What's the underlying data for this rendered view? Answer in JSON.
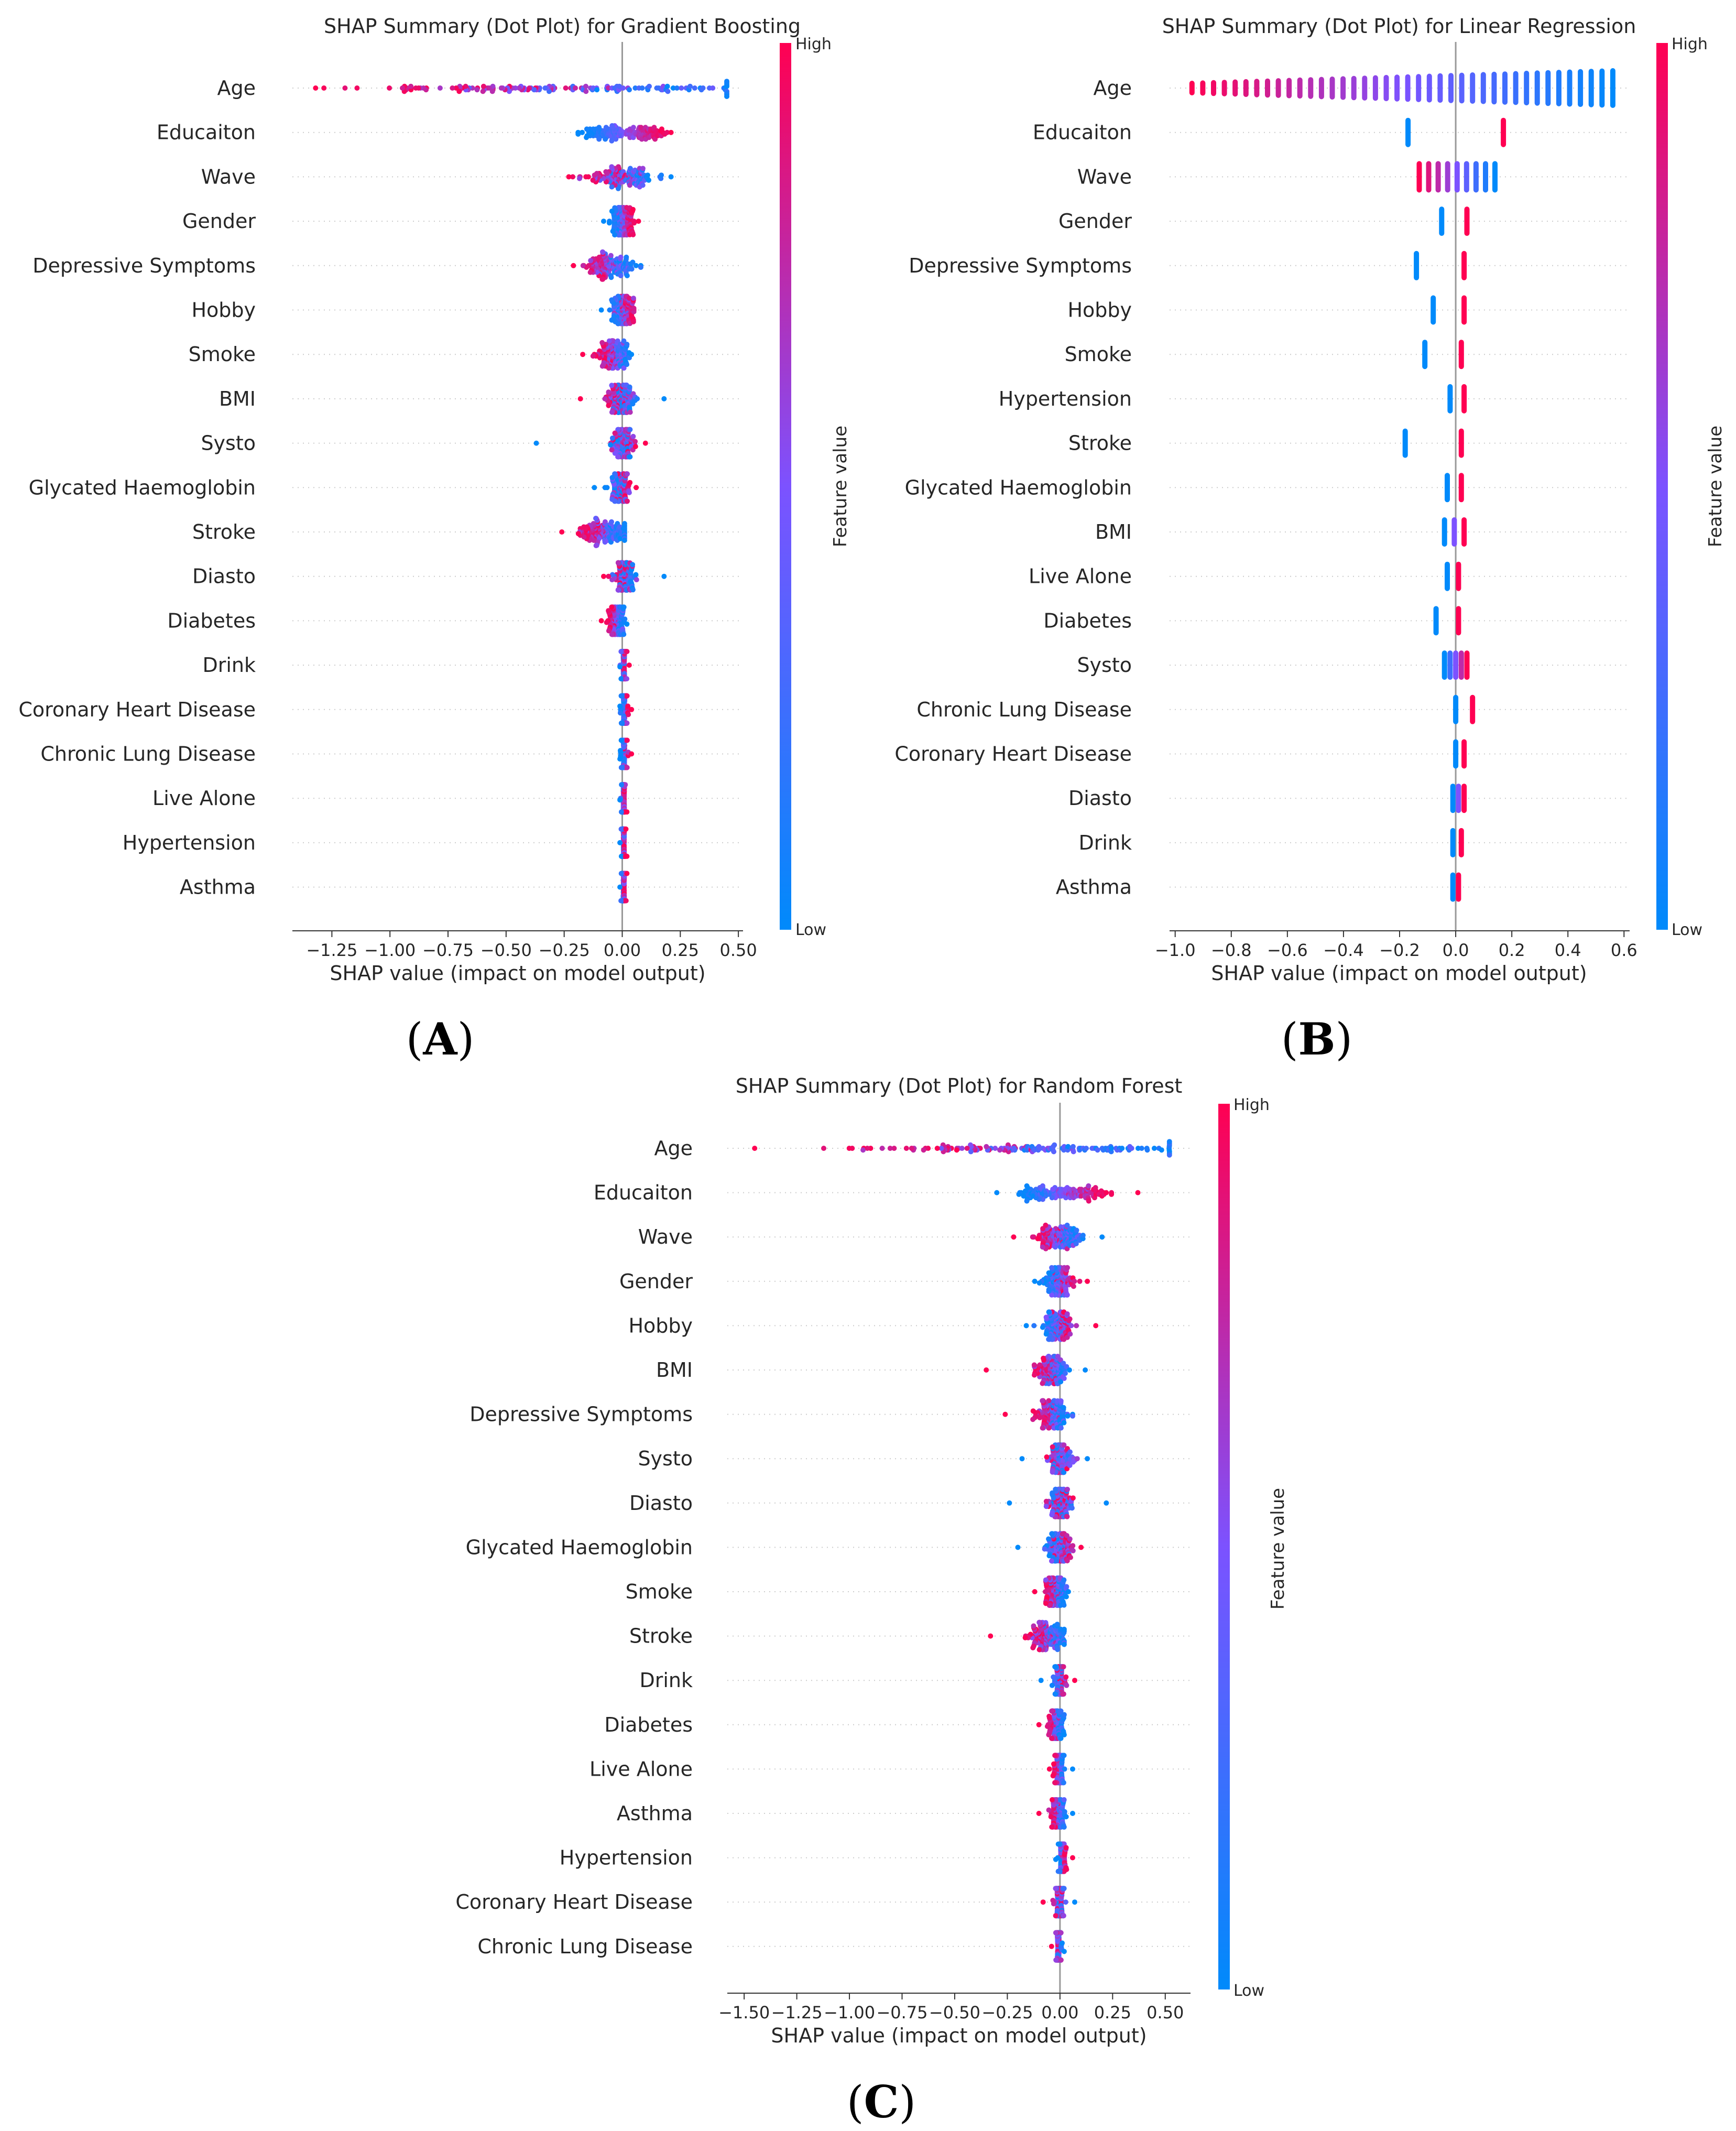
{
  "colors": {
    "low": "#008afb",
    "mid": "#7c52ff",
    "high": "#ff0052",
    "axis": "#333333",
    "zero": "#999999",
    "grid": "#cccccc"
  },
  "feature_value_label": "Feature value",
  "colorbar_high": "High",
  "colorbar_low": "Low",
  "chart_data": [
    {
      "type": "scatter",
      "panel_label": "A",
      "title": "SHAP Summary (Dot Plot) for Gradient Boosting",
      "xlabel": "SHAP value (impact on model output)",
      "xlim": [
        -1.42,
        0.52
      ],
      "xticks": [
        -1.25,
        -1.0,
        -0.75,
        -0.5,
        -0.25,
        0.0,
        0.25,
        0.5
      ],
      "xtick_labels": [
        "−1.25",
        "−1.00",
        "−0.75",
        "−0.50",
        "−0.25",
        "0.00",
        "0.25",
        "0.50"
      ],
      "features": [
        "Age",
        "Educaiton",
        "Wave",
        "Gender",
        "Depressive Symptoms",
        "Hobby",
        "Smoke",
        "BMI",
        "Systo",
        "Glycated Haemoglobin",
        "Stroke",
        "Diasto",
        "Diabetes",
        "Drink",
        "Coronary Heart Disease",
        "Chronic Lung Disease",
        "Live Alone",
        "Hypertension",
        "Asthma"
      ],
      "distributions": [
        {
          "min": -1.32,
          "max": 0.45,
          "low_center": 0.3,
          "high_center": -0.75,
          "spread": 0.45
        },
        {
          "min": -0.19,
          "max": 0.21,
          "low_center": -0.15,
          "high_center": 0.17,
          "spread": 0.03
        },
        {
          "min": -0.23,
          "max": 0.21,
          "low_center": 0.06,
          "high_center": -0.08,
          "spread": 0.1
        },
        {
          "min": -0.08,
          "max": 0.07,
          "low_center": -0.04,
          "high_center": 0.04,
          "spread": 0.02
        },
        {
          "min": -0.21,
          "max": 0.08,
          "low_center": 0.01,
          "high_center": -0.12,
          "spread": 0.06
        },
        {
          "min": -0.09,
          "max": 0.05,
          "low_center": -0.03,
          "high_center": 0.03,
          "spread": 0.03
        },
        {
          "min": -0.17,
          "max": 0.04,
          "low_center": 0.01,
          "high_center": -0.08,
          "spread": 0.04
        },
        {
          "min": -0.18,
          "max": 0.18,
          "low_center": 0.01,
          "high_center": -0.03,
          "spread": 0.05
        },
        {
          "min": -0.37,
          "max": 0.1,
          "low_center": 0.0,
          "high_center": 0.01,
          "spread": 0.04
        },
        {
          "min": -0.12,
          "max": 0.06,
          "low_center": -0.02,
          "high_center": 0.01,
          "spread": 0.03
        },
        {
          "min": -0.26,
          "max": 0.01,
          "low_center": 0.0,
          "high_center": -0.16,
          "spread": 0.05
        },
        {
          "min": -0.08,
          "max": 0.18,
          "low_center": 0.02,
          "high_center": -0.01,
          "spread": 0.04
        },
        {
          "min": -0.09,
          "max": 0.02,
          "low_center": 0.0,
          "high_center": -0.05,
          "spread": 0.02
        },
        {
          "min": -0.01,
          "max": 0.03,
          "low_center": 0.0,
          "high_center": 0.01,
          "spread": 0.008
        },
        {
          "min": -0.01,
          "max": 0.04,
          "low_center": 0.0,
          "high_center": 0.02,
          "spread": 0.008
        },
        {
          "min": -0.01,
          "max": 0.04,
          "low_center": 0.0,
          "high_center": 0.02,
          "spread": 0.008
        },
        {
          "min": -0.01,
          "max": 0.02,
          "low_center": 0.0,
          "high_center": 0.01,
          "spread": 0.005
        },
        {
          "min": -0.01,
          "max": 0.02,
          "low_center": 0.0,
          "high_center": 0.01,
          "spread": 0.005
        },
        {
          "min": -0.01,
          "max": 0.02,
          "low_center": 0.0,
          "high_center": 0.01,
          "spread": 0.005
        }
      ]
    },
    {
      "type": "scatter",
      "panel_label": "B",
      "title": "SHAP Summary (Dot Plot) for Linear Regression",
      "xlabel": "SHAP value (impact on model output)",
      "xlim": [
        -1.02,
        0.62
      ],
      "xticks": [
        -1.0,
        -0.8,
        -0.6,
        -0.4,
        -0.2,
        0.0,
        0.2,
        0.4,
        0.6
      ],
      "xtick_labels": [
        "−1.0",
        "−0.8",
        "−0.6",
        "−0.4",
        "−0.2",
        "0.0",
        "0.2",
        "0.4",
        "0.6"
      ],
      "features": [
        "Age",
        "Educaiton",
        "Wave",
        "Gender",
        "Depressive Symptoms",
        "Hobby",
        "Smoke",
        "Hypertension",
        "Stroke",
        "Glycated Haemoglobin",
        "BMI",
        "Live Alone",
        "Diabetes",
        "Systo",
        "Chronic Lung Disease",
        "Coronary Heart Disease",
        "Diasto",
        "Drink",
        "Asthma"
      ],
      "discrete": [
        {
          "min": -0.94,
          "max": 0.56,
          "columns": 40
        },
        {
          "min": -0.17,
          "max": 0.17,
          "columns": 2
        },
        {
          "min": -0.13,
          "max": 0.14,
          "columns": 9
        },
        {
          "min": -0.05,
          "max": 0.04,
          "columns": 2
        },
        {
          "min": -0.14,
          "max": 0.03,
          "columns": 2
        },
        {
          "min": -0.08,
          "max": 0.03,
          "columns": 2
        },
        {
          "min": -0.11,
          "max": 0.02,
          "columns": 2
        },
        {
          "min": -0.02,
          "max": 0.03,
          "columns": 2
        },
        {
          "min": -0.18,
          "max": 0.02,
          "columns": 2
        },
        {
          "min": -0.03,
          "max": 0.02,
          "columns": 2
        },
        {
          "min": -0.04,
          "max": 0.03,
          "columns": 3
        },
        {
          "min": -0.03,
          "max": 0.01,
          "columns": 2
        },
        {
          "min": -0.07,
          "max": 0.01,
          "columns": 2
        },
        {
          "min": -0.04,
          "max": 0.04,
          "columns": 5
        },
        {
          "min": 0.0,
          "max": 0.06,
          "columns": 2
        },
        {
          "min": 0.0,
          "max": 0.03,
          "columns": 2
        },
        {
          "min": -0.01,
          "max": 0.03,
          "columns": 3
        },
        {
          "min": -0.01,
          "max": 0.02,
          "columns": 2
        },
        {
          "min": -0.01,
          "max": 0.01,
          "columns": 2
        }
      ]
    },
    {
      "type": "scatter",
      "panel_label": "C",
      "title": "SHAP Summary (Dot Plot) for Random Forest",
      "xlabel": "SHAP value (impact on model output)",
      "xlim": [
        -1.58,
        0.62
      ],
      "xticks": [
        -1.5,
        -1.25,
        -1.0,
        -0.75,
        -0.5,
        -0.25,
        0.0,
        0.25,
        0.5
      ],
      "xtick_labels": [
        "−1.50",
        "−1.25",
        "−1.00",
        "−0.75",
        "−0.50",
        "−0.25",
        "0.00",
        "0.25",
        "0.50"
      ],
      "features": [
        "Age",
        "Educaiton",
        "Wave",
        "Gender",
        "Hobby",
        "BMI",
        "Depressive Symptoms",
        "Systo",
        "Diasto",
        "Glycated Haemoglobin",
        "Smoke",
        "Stroke",
        "Drink",
        "Diabetes",
        "Live Alone",
        "Asthma",
        "Hypertension",
        "Coronary Heart Disease",
        "Chronic Lung Disease"
      ],
      "distributions": [
        {
          "min": -1.45,
          "max": 0.52,
          "low_center": 0.32,
          "high_center": -0.7,
          "spread": 0.45
        },
        {
          "min": -0.3,
          "max": 0.37,
          "low_center": -0.17,
          "high_center": 0.2,
          "spread": 0.06
        },
        {
          "min": -0.22,
          "max": 0.2,
          "low_center": 0.06,
          "high_center": -0.08,
          "spread": 0.07
        },
        {
          "min": -0.12,
          "max": 0.13,
          "low_center": -0.05,
          "high_center": 0.05,
          "spread": 0.04
        },
        {
          "min": -0.16,
          "max": 0.17,
          "low_center": -0.05,
          "high_center": 0.03,
          "spread": 0.05
        },
        {
          "min": -0.35,
          "max": 0.12,
          "low_center": 0.0,
          "high_center": -0.08,
          "spread": 0.05
        },
        {
          "min": -0.26,
          "max": 0.06,
          "low_center": 0.01,
          "high_center": -0.09,
          "spread": 0.05
        },
        {
          "min": -0.18,
          "max": 0.13,
          "low_center": 0.0,
          "high_center": 0.0,
          "spread": 0.05
        },
        {
          "min": -0.24,
          "max": 0.22,
          "low_center": 0.0,
          "high_center": 0.0,
          "spread": 0.05
        },
        {
          "min": -0.2,
          "max": 0.1,
          "low_center": -0.03,
          "high_center": 0.02,
          "spread": 0.04
        },
        {
          "min": -0.12,
          "max": 0.04,
          "low_center": 0.01,
          "high_center": -0.05,
          "spread": 0.03
        },
        {
          "min": -0.33,
          "max": 0.02,
          "low_center": 0.0,
          "high_center": -0.12,
          "spread": 0.05
        },
        {
          "min": -0.09,
          "max": 0.07,
          "low_center": -0.01,
          "high_center": 0.01,
          "spread": 0.02
        },
        {
          "min": -0.1,
          "max": 0.02,
          "low_center": 0.0,
          "high_center": -0.04,
          "spread": 0.02
        },
        {
          "min": -0.05,
          "max": 0.06,
          "low_center": 0.01,
          "high_center": -0.02,
          "spread": 0.015
        },
        {
          "min": -0.1,
          "max": 0.06,
          "low_center": 0.01,
          "high_center": -0.03,
          "spread": 0.02
        },
        {
          "min": -0.02,
          "max": 0.06,
          "low_center": 0.0,
          "high_center": 0.02,
          "spread": 0.01
        },
        {
          "min": -0.08,
          "max": 0.07,
          "low_center": 0.0,
          "high_center": -0.01,
          "spread": 0.02
        },
        {
          "min": -0.04,
          "max": 0.02,
          "low_center": 0.0,
          "high_center": -0.01,
          "spread": 0.01
        }
      ]
    }
  ]
}
